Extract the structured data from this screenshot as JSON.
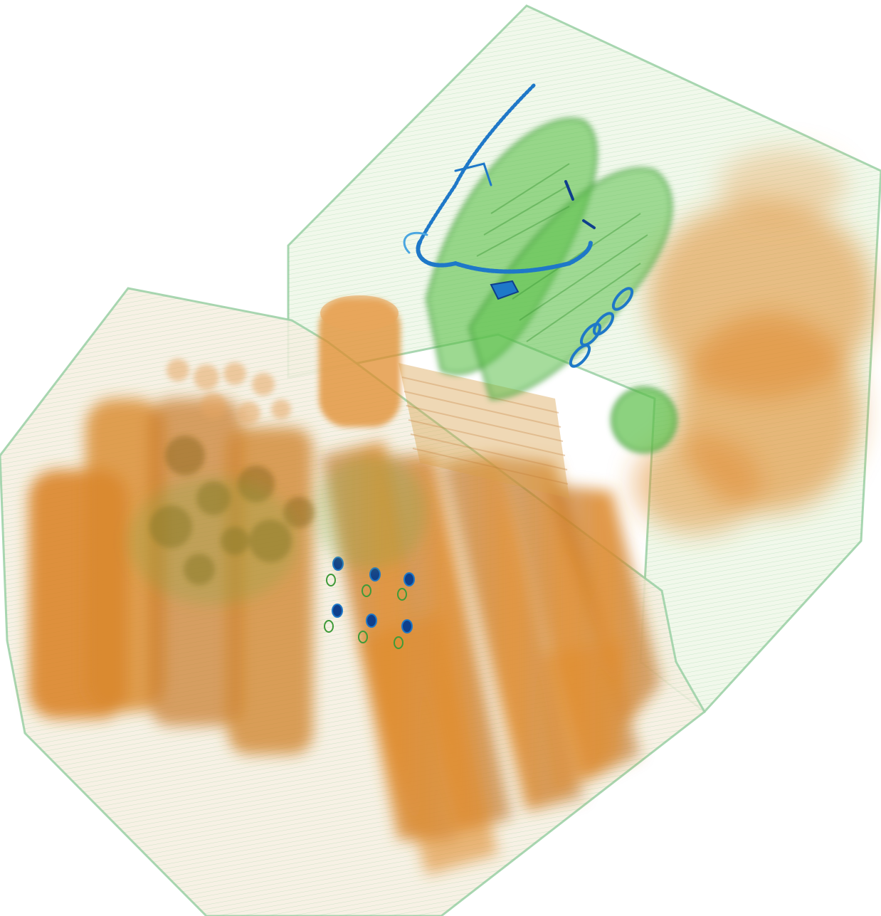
{
  "image": {
    "kind": "ct-volume-rendering",
    "subject": "luggage scan",
    "legend_shown": false,
    "text_shown": false
  },
  "colors": {
    "background": "#ffffff",
    "shell_fill": "#eef6e6",
    "shell_edge": "#9fd1a8",
    "organic_light": "#f0b46a",
    "organic": "#e08c2e",
    "organic_dark": "#b86a1c",
    "organic_shadow": "#8f6a1f",
    "inorganic_light": "#9ddb86",
    "inorganic": "#5cbf4a",
    "inorganic_dark": "#3f9a38",
    "metal": "#1e78c8",
    "metal_dark": "#0f3f8c"
  }
}
